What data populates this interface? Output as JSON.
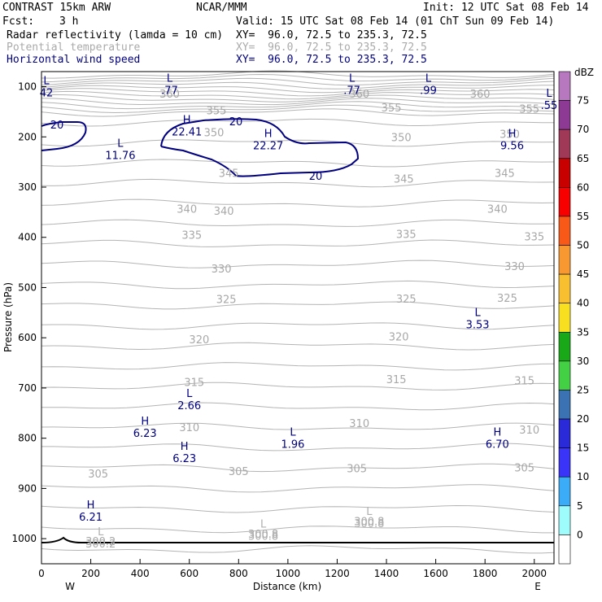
{
  "header": {
    "title": "CONTRAST 15km ARW",
    "org": "NCAR/MMM",
    "init": "Init: 12 UTC Sat 08 Feb 14",
    "fcst_label": "Fcst:",
    "fcst_value": "3 h",
    "valid": "Valid: 15 UTC Sat 08 Feb 14 (01 ChT Sun 09 Feb 14)",
    "fields": [
      {
        "name": "Radar reflectivity (lamda = 10 cm)",
        "xy": "XY=  96.0, 72.5 to 235.3, 72.5",
        "color": "#000000"
      },
      {
        "name": "Potential temperature",
        "xy": "XY=  96.0, 72.5 to 235.3, 72.5",
        "color": "#aaaaaa"
      },
      {
        "name": "Horizontal wind speed",
        "xy": "XY=  96.0, 72.5 to 235.3, 72.5",
        "color": "#000080"
      }
    ]
  },
  "chart_data": {
    "type": "line",
    "title": "Vertical cross-section",
    "xlabel": "Distance (km)",
    "ylabel": "Pressure (hPa)",
    "xlim": [
      0,
      2080
    ],
    "ylim": [
      1050,
      70
    ],
    "x_ticks": [
      0,
      200,
      400,
      600,
      800,
      1000,
      1200,
      1400,
      1600,
      1800,
      2000
    ],
    "y_ticks": [
      100,
      200,
      300,
      400,
      500,
      600,
      700,
      800,
      900,
      1000
    ],
    "x_end_labels": {
      "left": "W",
      "right": "E"
    },
    "theta_contours": [
      {
        "label": "300.2",
        "x": 240,
        "p": 1005
      },
      {
        "label": "300.8",
        "x": 900,
        "p": 990
      },
      {
        "label": "300.8",
        "x": 1330,
        "p": 965
      },
      {
        "label": "305",
        "x": 230,
        "p": 870
      },
      {
        "label": "305",
        "x": 800,
        "p": 865
      },
      {
        "label": "305",
        "x": 1280,
        "p": 860
      },
      {
        "label": "305",
        "x": 1960,
        "p": 858
      },
      {
        "label": "310",
        "x": 600,
        "p": 778
      },
      {
        "label": "310",
        "x": 1290,
        "p": 770
      },
      {
        "label": "310",
        "x": 1980,
        "p": 783
      },
      {
        "label": "315",
        "x": 620,
        "p": 688
      },
      {
        "label": "315",
        "x": 1440,
        "p": 682
      },
      {
        "label": "315",
        "x": 1960,
        "p": 685
      },
      {
        "label": "320",
        "x": 640,
        "p": 603
      },
      {
        "label": "320",
        "x": 1450,
        "p": 597
      },
      {
        "label": "325",
        "x": 750,
        "p": 523
      },
      {
        "label": "325",
        "x": 1480,
        "p": 522
      },
      {
        "label": "325",
        "x": 1890,
        "p": 520
      },
      {
        "label": "330",
        "x": 730,
        "p": 462
      },
      {
        "label": "330",
        "x": 1920,
        "p": 457
      },
      {
        "label": "335",
        "x": 610,
        "p": 395
      },
      {
        "label": "335",
        "x": 1480,
        "p": 393
      },
      {
        "label": "335",
        "x": 2000,
        "p": 398
      },
      {
        "label": "340",
        "x": 590,
        "p": 343
      },
      {
        "label": "340",
        "x": 740,
        "p": 347
      },
      {
        "label": "340",
        "x": 1850,
        "p": 343
      },
      {
        "label": "345",
        "x": 760,
        "p": 272
      },
      {
        "label": "345",
        "x": 1470,
        "p": 283
      },
      {
        "label": "345",
        "x": 1880,
        "p": 272
      },
      {
        "label": "350",
        "x": 700,
        "p": 191
      },
      {
        "label": "350",
        "x": 1460,
        "p": 200
      },
      {
        "label": "350",
        "x": 1900,
        "p": 194
      },
      {
        "label": "355",
        "x": 710,
        "p": 147
      },
      {
        "label": "355",
        "x": 1420,
        "p": 141
      },
      {
        "label": "355",
        "x": 1980,
        "p": 144
      },
      {
        "label": "360",
        "x": 520,
        "p": 114
      },
      {
        "label": "360",
        "x": 1290,
        "p": 114
      },
      {
        "label": "360",
        "x": 1780,
        "p": 114
      }
    ],
    "wind_contour_label": "20",
    "wind_labels": [
      {
        "text": "L",
        "value": "42",
        "x": 20,
        "p": 100
      },
      {
        "text": "L",
        "value": ".77",
        "x": 520,
        "p": 95
      },
      {
        "text": "L",
        "value": ".77",
        "x": 1260,
        "p": 95
      },
      {
        "text": "L",
        "value": ".99",
        "x": 1570,
        "p": 95
      },
      {
        "text": "L",
        "value": ".55",
        "x": 2060,
        "p": 125
      },
      {
        "text": "H",
        "value": "22.41",
        "x": 590,
        "p": 178
      },
      {
        "text": "H",
        "value": "22.27",
        "x": 920,
        "p": 205
      },
      {
        "text": "L",
        "value": "11.76",
        "x": 320,
        "p": 225
      },
      {
        "text": "H",
        "value": "9.56",
        "x": 1910,
        "p": 205
      },
      {
        "text": "L",
        "value": "3.53",
        "x": 1770,
        "p": 562
      },
      {
        "text": "L",
        "value": "2.66",
        "x": 600,
        "p": 723
      },
      {
        "text": "H",
        "value": "6.23",
        "x": 420,
        "p": 778
      },
      {
        "text": "L",
        "value": "1.96",
        "x": 1020,
        "p": 800
      },
      {
        "text": "H",
        "value": "6.70",
        "x": 1850,
        "p": 800
      },
      {
        "text": "H",
        "value": "6.23",
        "x": 580,
        "p": 828
      },
      {
        "text": "H",
        "value": "6.21",
        "x": 200,
        "p": 945
      }
    ],
    "gray_labels": [
      {
        "text": "L",
        "value": "300.2",
        "x": 240,
        "p": 998
      },
      {
        "text": "L",
        "value": "300.8",
        "x": 900,
        "p": 983
      },
      {
        "text": "L",
        "value": "300.8",
        "x": 1330,
        "p": 958
      }
    ],
    "colorbar": {
      "unit": "dBZ",
      "levels": [
        0,
        5,
        10,
        15,
        20,
        25,
        30,
        35,
        40,
        45,
        50,
        55,
        60,
        65,
        70,
        75
      ],
      "colors": [
        "#ffffff",
        "#9ffcfc",
        "#3aacf8",
        "#3a34f8",
        "#2a2ad8",
        "#3a72b4",
        "#44d044",
        "#18a818",
        "#f8e020",
        "#f8c030",
        "#f89830",
        "#f85818",
        "#f80000",
        "#c80000",
        "#a03858",
        "#8c3a94",
        "#b878c0"
      ]
    }
  }
}
